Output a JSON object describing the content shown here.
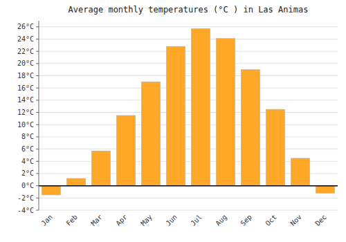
{
  "chart_data": {
    "type": "bar",
    "title": "Average monthly temperatures (°C ) in Las Animas",
    "categories": [
      "Jan",
      "Feb",
      "Mar",
      "Apr",
      "May",
      "Jun",
      "Jul",
      "Aug",
      "Sep",
      "Oct",
      "Nov",
      "Dec"
    ],
    "values": [
      -1.5,
      1.2,
      5.7,
      11.5,
      17.0,
      22.8,
      25.7,
      24.1,
      19.0,
      12.5,
      4.5,
      -1.2
    ],
    "color": "#FFA726",
    "ylim": [
      -4,
      27
    ],
    "yticks": [
      {
        "value": -4,
        "label": "-4°C"
      },
      {
        "value": -2,
        "label": "-2°C"
      },
      {
        "value": 0,
        "label": "0°C"
      },
      {
        "value": 2,
        "label": "2°C"
      },
      {
        "value": 4,
        "label": "4°C"
      },
      {
        "value": 6,
        "label": "6°C"
      },
      {
        "value": 8,
        "label": "8°C"
      },
      {
        "value": 10,
        "label": "10°C"
      },
      {
        "value": 12,
        "label": "12°C"
      },
      {
        "value": 14,
        "label": "14°C"
      },
      {
        "value": 16,
        "label": "16°C"
      },
      {
        "value": 18,
        "label": "18°C"
      },
      {
        "value": 20,
        "label": "20°C"
      },
      {
        "value": 22,
        "label": "22°C"
      },
      {
        "value": 24,
        "label": "24°C"
      },
      {
        "value": 26,
        "label": "26°C"
      }
    ],
    "grid": true
  }
}
